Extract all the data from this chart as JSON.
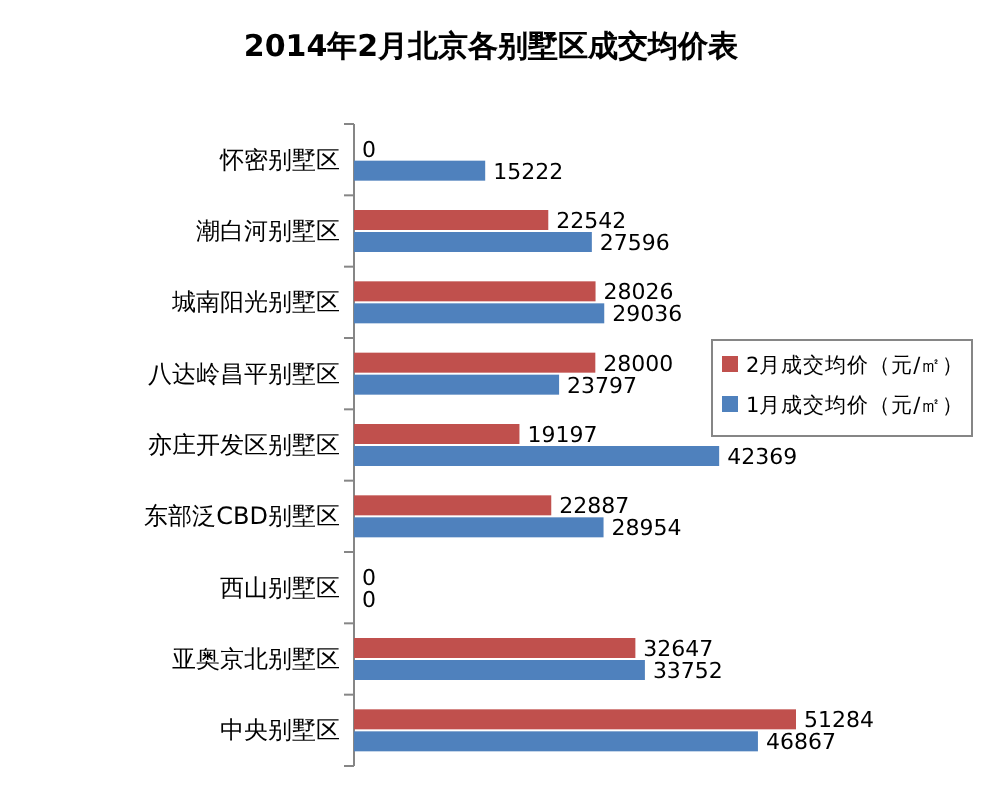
{
  "chart_data": {
    "type": "bar",
    "orientation": "horizontal",
    "title": "2014年2月北京各别墅区成交均价表",
    "categories": [
      "怀密别墅区",
      "潮白河别墅区",
      "城南阳光别墅区",
      "八达岭昌平别墅区",
      "亦庄开发区别墅区",
      "东部泛CBD别墅区",
      "西山别墅区",
      "亚奥京北别墅区",
      "中央别墅区"
    ],
    "series": [
      {
        "name": "2月成交均价（元/㎡）",
        "color": "#c0504d",
        "values": [
          0,
          22542,
          28026,
          28000,
          19197,
          22887,
          0,
          32647,
          51284
        ]
      },
      {
        "name": "1月成交均价（元/㎡）",
        "color": "#4f81bd",
        "values": [
          15222,
          27596,
          29036,
          23797,
          42369,
          28954,
          0,
          33752,
          46867
        ]
      }
    ],
    "data_labels": true,
    "legend": "right",
    "grid": false
  }
}
